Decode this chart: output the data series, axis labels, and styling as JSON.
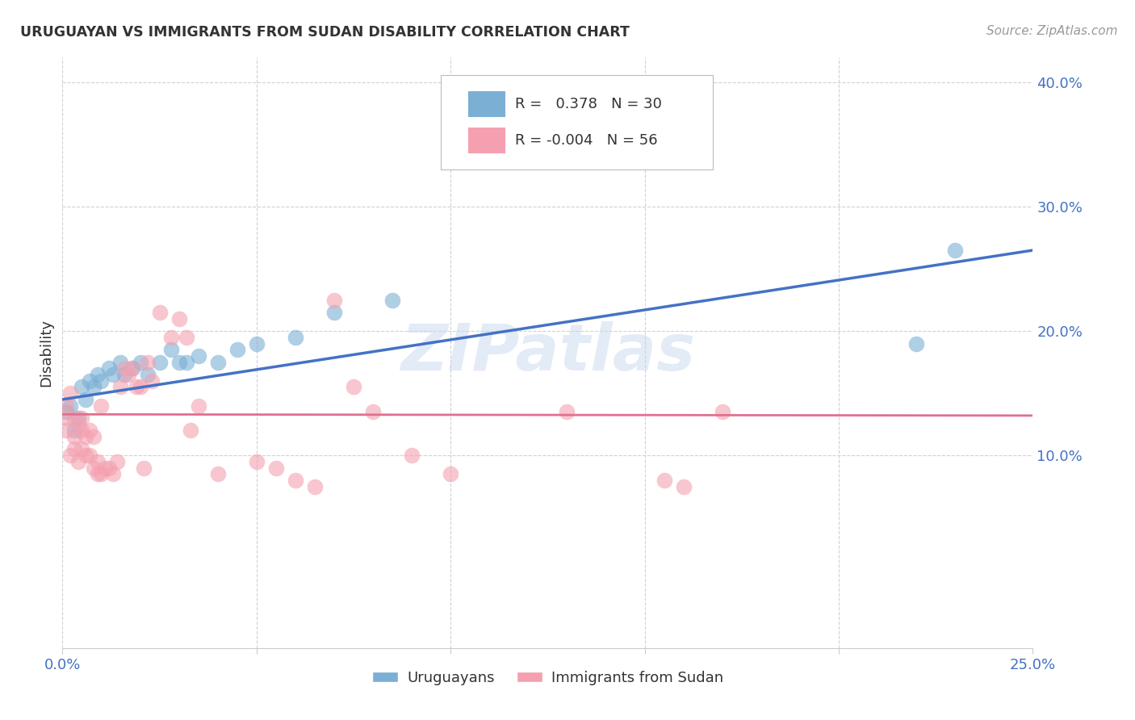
{
  "title": "URUGUAYAN VS IMMIGRANTS FROM SUDAN DISABILITY CORRELATION CHART",
  "source": "Source: ZipAtlas.com",
  "ylabel": "Disability",
  "watermark": "ZIPatlas",
  "blue_R": "0.378",
  "blue_N": "30",
  "pink_R": "-0.004",
  "pink_N": "56",
  "blue_color": "#7BAFD4",
  "pink_color": "#F4A0B0",
  "blue_line_color": "#4472C4",
  "pink_line_color": "#E07090",
  "ytick_vals": [
    0.1,
    0.2,
    0.3,
    0.4
  ],
  "ytick_labels": [
    "10.0%",
    "20.0%",
    "30.0%",
    "40.0%"
  ],
  "xtick_vals": [
    0.0,
    0.05,
    0.1,
    0.15,
    0.2,
    0.25
  ],
  "xmin": 0.0,
  "xmax": 0.25,
  "ymin": -0.055,
  "ymax": 0.42,
  "blue_points_x": [
    0.001,
    0.002,
    0.003,
    0.004,
    0.005,
    0.006,
    0.007,
    0.008,
    0.009,
    0.01,
    0.012,
    0.013,
    0.015,
    0.016,
    0.018,
    0.02,
    0.022,
    0.025,
    0.028,
    0.03,
    0.032,
    0.035,
    0.04,
    0.045,
    0.05,
    0.06,
    0.07,
    0.085,
    0.22,
    0.23
  ],
  "blue_points_y": [
    0.135,
    0.14,
    0.12,
    0.13,
    0.155,
    0.145,
    0.16,
    0.155,
    0.165,
    0.16,
    0.17,
    0.165,
    0.175,
    0.165,
    0.17,
    0.175,
    0.165,
    0.175,
    0.185,
    0.175,
    0.175,
    0.18,
    0.175,
    0.185,
    0.19,
    0.195,
    0.215,
    0.225,
    0.19,
    0.265
  ],
  "pink_points_x": [
    0.001,
    0.001,
    0.001,
    0.002,
    0.002,
    0.003,
    0.003,
    0.003,
    0.004,
    0.004,
    0.005,
    0.005,
    0.005,
    0.006,
    0.006,
    0.007,
    0.007,
    0.008,
    0.008,
    0.009,
    0.009,
    0.01,
    0.01,
    0.011,
    0.012,
    0.013,
    0.014,
    0.015,
    0.016,
    0.017,
    0.018,
    0.019,
    0.02,
    0.021,
    0.022,
    0.023,
    0.025,
    0.028,
    0.03,
    0.032,
    0.033,
    0.035,
    0.04,
    0.05,
    0.055,
    0.06,
    0.065,
    0.07,
    0.075,
    0.08,
    0.09,
    0.1,
    0.13,
    0.155,
    0.16,
    0.17
  ],
  "pink_points_y": [
    0.14,
    0.13,
    0.12,
    0.15,
    0.1,
    0.13,
    0.115,
    0.105,
    0.125,
    0.095,
    0.13,
    0.12,
    0.105,
    0.115,
    0.1,
    0.12,
    0.1,
    0.115,
    0.09,
    0.095,
    0.085,
    0.14,
    0.085,
    0.09,
    0.09,
    0.085,
    0.095,
    0.155,
    0.17,
    0.165,
    0.17,
    0.155,
    0.155,
    0.09,
    0.175,
    0.16,
    0.215,
    0.195,
    0.21,
    0.195,
    0.12,
    0.14,
    0.085,
    0.095,
    0.09,
    0.08,
    0.075,
    0.225,
    0.155,
    0.135,
    0.1,
    0.085,
    0.135,
    0.08,
    0.075,
    0.135
  ],
  "blue_trend_x": [
    0.0,
    0.25
  ],
  "blue_trend_y": [
    0.145,
    0.265
  ],
  "pink_trend_x": [
    0.0,
    0.25
  ],
  "pink_trend_y": [
    0.133,
    0.132
  ],
  "legend_blue_label": "Uruguayans",
  "legend_pink_label": "Immigrants from Sudan",
  "background_color": "#FFFFFF",
  "grid_color": "#CCCCCC",
  "tick_color": "#4472C4"
}
